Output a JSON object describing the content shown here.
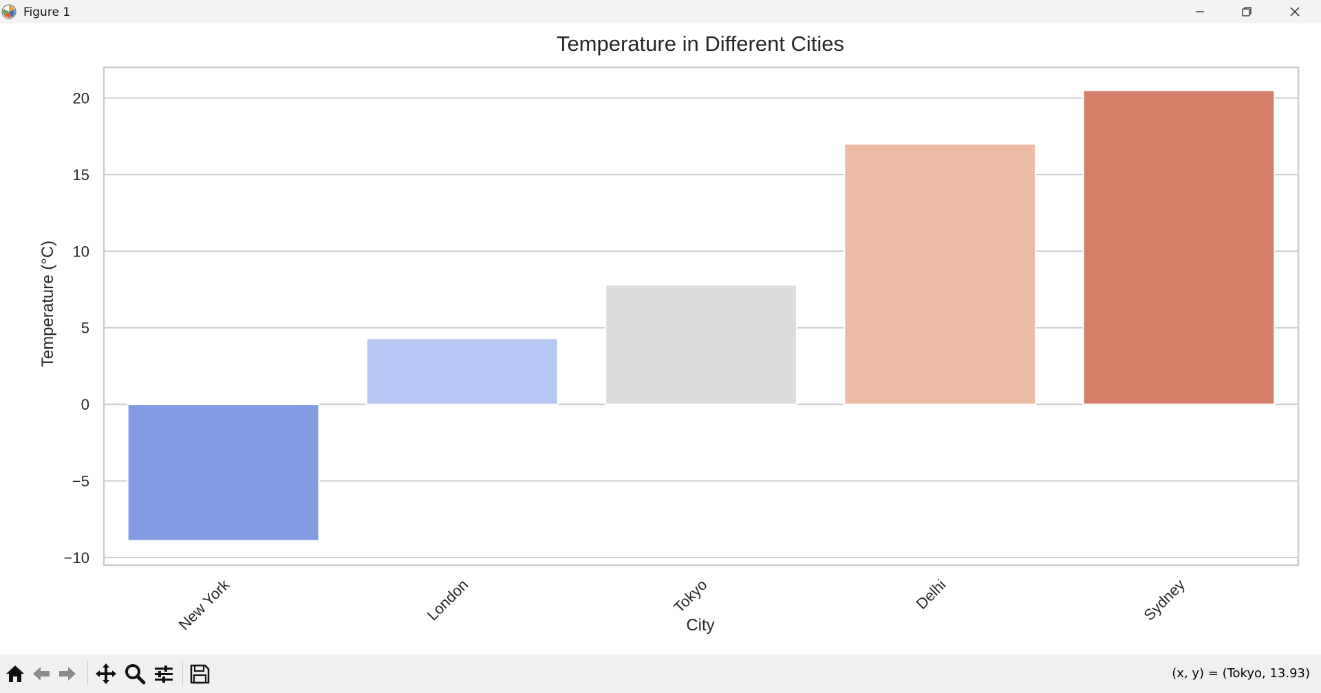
{
  "window": {
    "title": "Figure 1",
    "icon": "matplotlib-logo-icon",
    "controls": [
      "minimize-icon",
      "restore-icon",
      "close-icon"
    ]
  },
  "toolbar": {
    "tools": [
      "home-icon",
      "back-arrow-icon",
      "forward-arrow-icon",
      "pan-move-icon",
      "zoom-magnifier-icon",
      "configure-subplots-icon",
      "save-disk-icon"
    ],
    "coordinates": "(x, y) = (Tokyo, 13.93)"
  },
  "chart_data": {
    "type": "bar",
    "title": "Temperature in Different Cities",
    "xlabel": "City",
    "ylabel": "Temperature (°C)",
    "categories": [
      "New York",
      "London",
      "Tokyo",
      "Delhi",
      "Sydney"
    ],
    "values": [
      -8.9,
      4.3,
      7.8,
      17.0,
      20.5
    ],
    "colors": [
      "#819CE3",
      "#B5C8F3",
      "#DCDCDC",
      "#ECBBA4",
      "#D57E6A"
    ],
    "ylim": [
      -10.5,
      22
    ],
    "yticks": [
      -10,
      -5,
      0,
      5,
      10,
      15,
      20
    ],
    "ytick_labels": [
      "−10",
      "−5",
      "0",
      "5",
      "10",
      "15",
      "20"
    ],
    "xtick_rotation": 45,
    "grid": "horizontal"
  }
}
